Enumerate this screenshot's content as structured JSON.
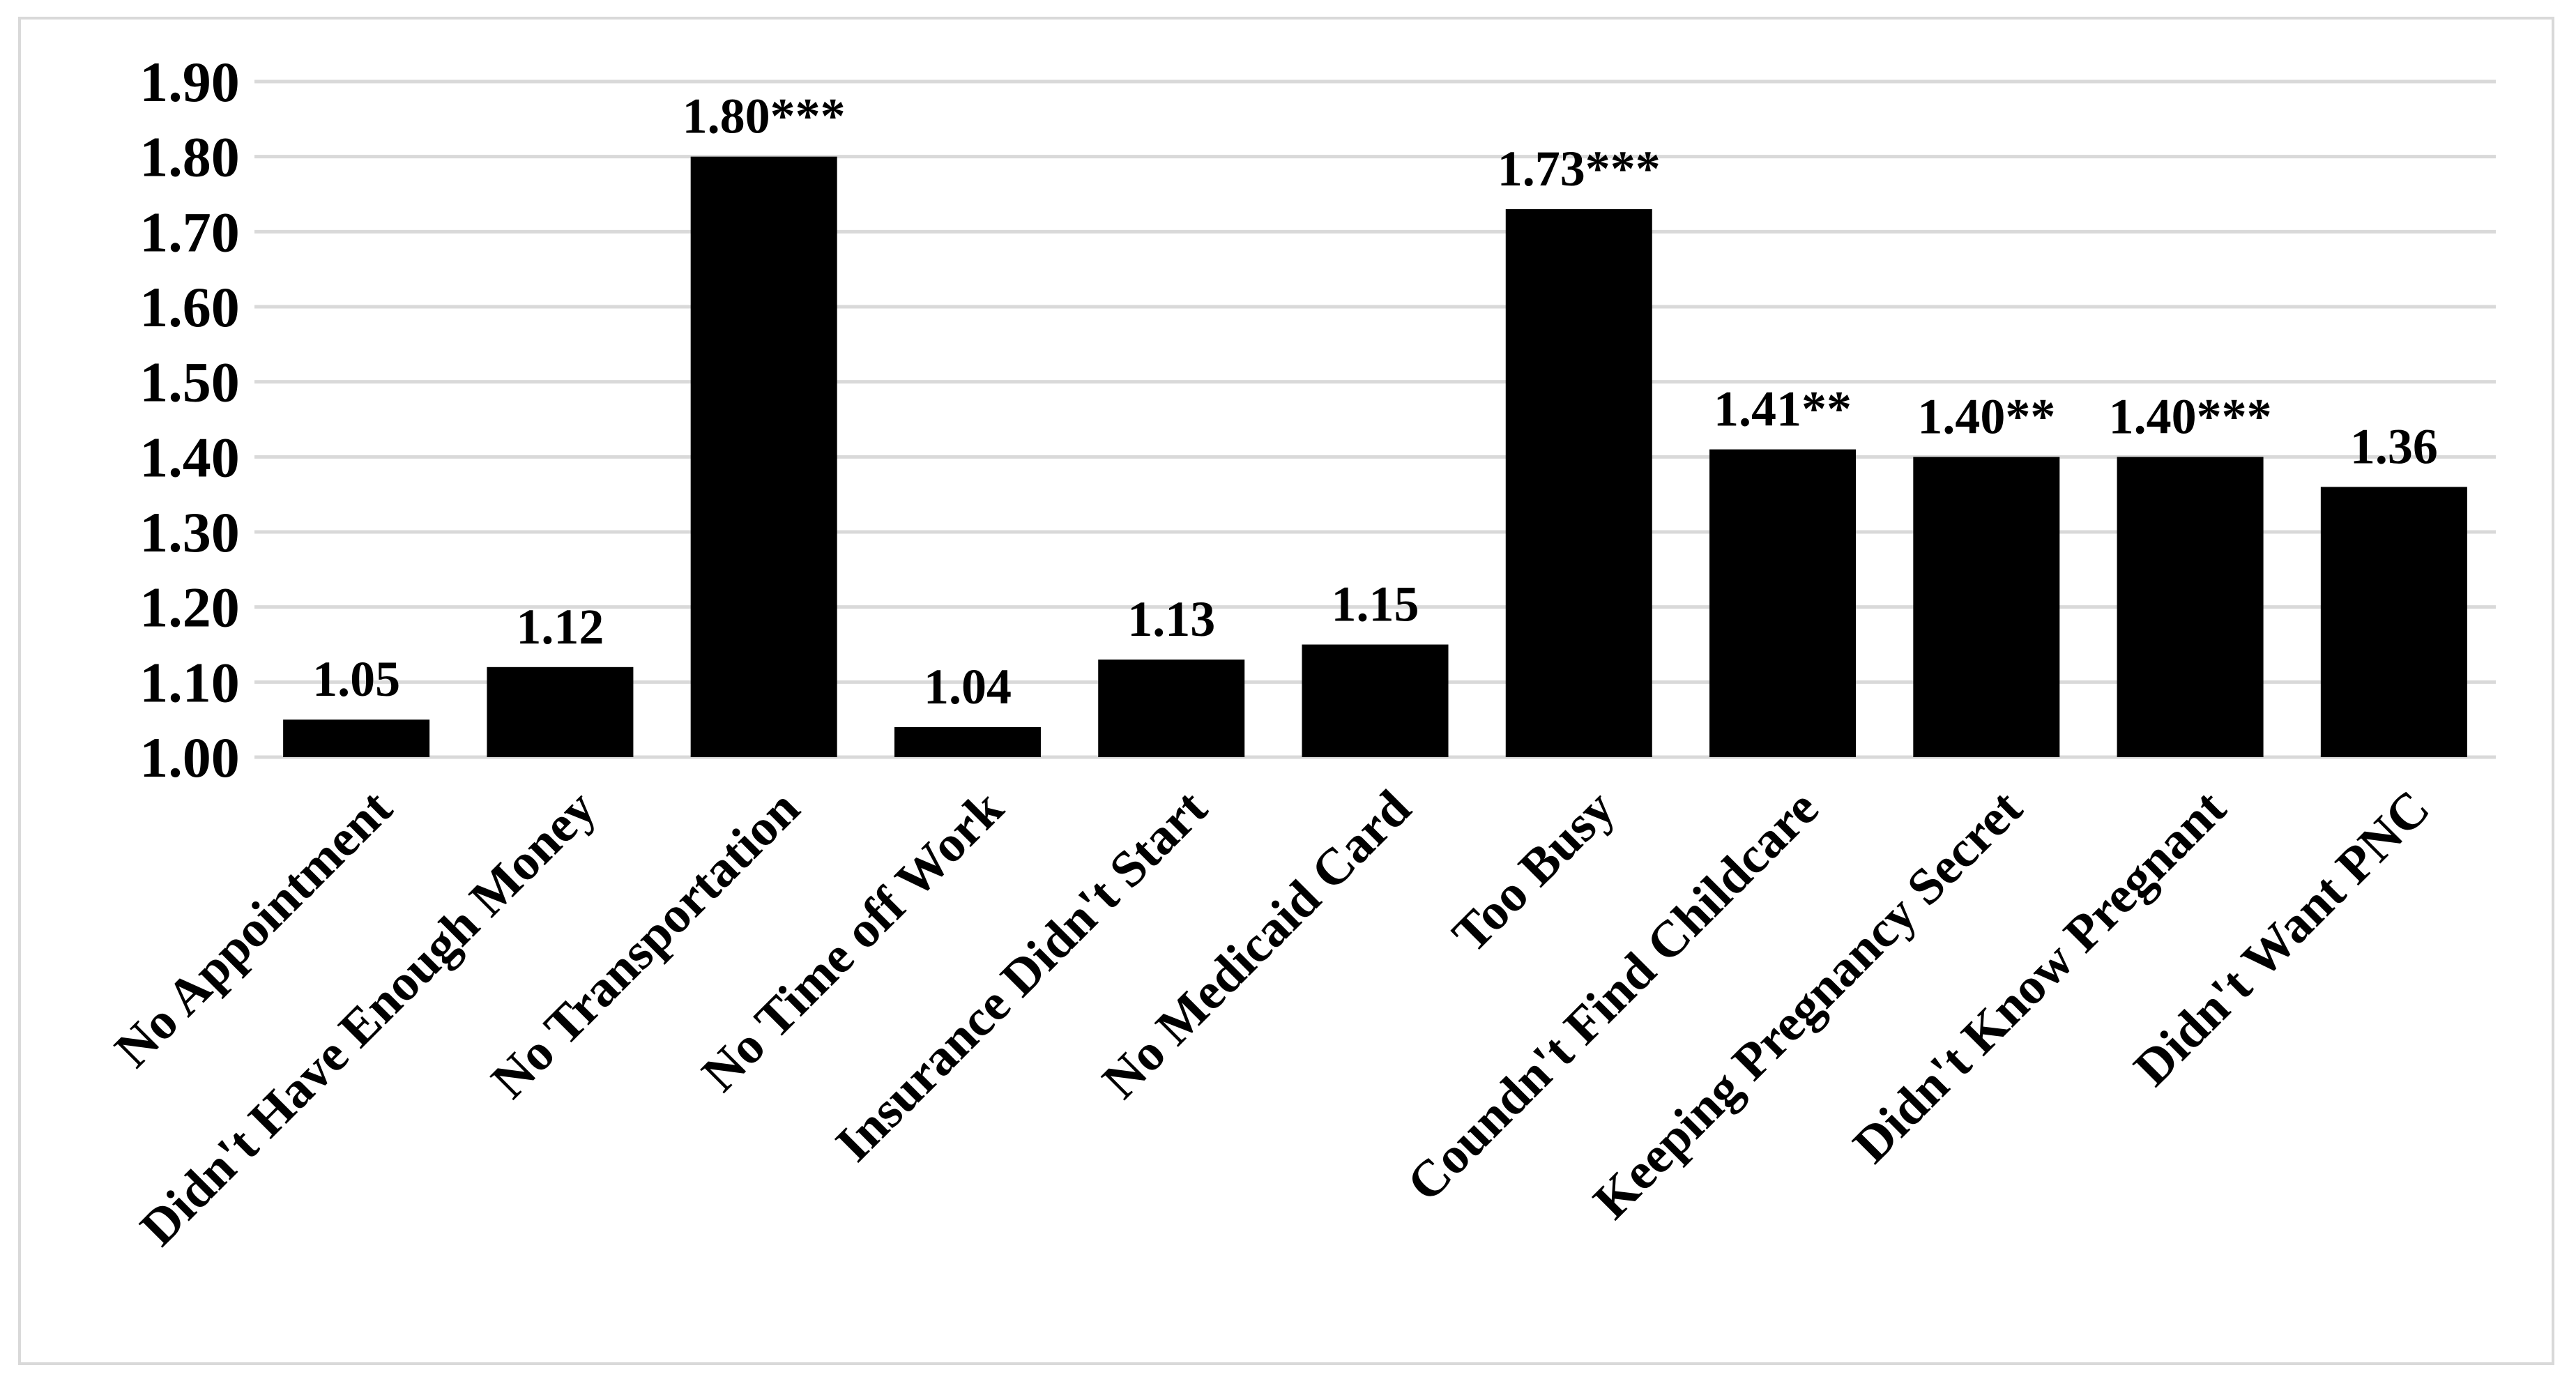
{
  "chart_data": {
    "type": "bar",
    "title": "",
    "xlabel": "",
    "ylabel": "",
    "ylim": [
      1.0,
      1.9
    ],
    "yticks": [
      "1.00",
      "1.10",
      "1.20",
      "1.30",
      "1.40",
      "1.50",
      "1.60",
      "1.70",
      "1.80",
      "1.90"
    ],
    "grid": true,
    "bar_color": "#000000",
    "grid_color": "#d9d9d9",
    "categories": [
      "No Appointment",
      "Didn't Have Enough Money",
      "No Transportation",
      "No Time off Work",
      "Insurance Didn't Start",
      "No Medicaid Card",
      "Too Busy",
      "Coundn't Find Childcare",
      "Keeping Pregnancy Secret",
      "Didn't Know Pregnant",
      "Didn't Want PNC"
    ],
    "values": [
      1.05,
      1.12,
      1.8,
      1.04,
      1.13,
      1.15,
      1.73,
      1.41,
      1.4,
      1.4,
      1.36
    ],
    "data_labels": [
      "1.05",
      "1.12",
      "1.80***",
      "1.04",
      "1.13",
      "1.15",
      "1.73***",
      "1.41**",
      "1.40**",
      "1.40***",
      "1.36"
    ]
  }
}
